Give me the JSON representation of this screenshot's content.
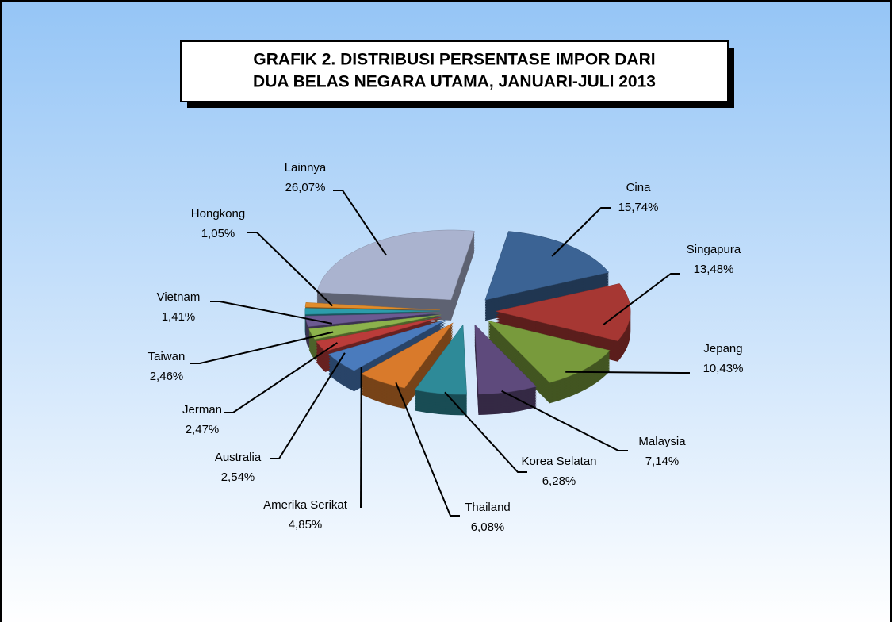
{
  "chart_data": {
    "type": "pie",
    "title": [
      "GRAFIK 2. DISTRIBUSI  PERSENTASE IMPOR DARI",
      "DUA BELAS NEGARA UTAMA, JANUARI-JULI 2013"
    ],
    "categories": [
      "Cina",
      "Singapura",
      "Jepang",
      "Malaysia",
      "Korea Selatan",
      "Thailand",
      "Amerika Serikat",
      "Australia",
      "Jerman",
      "Taiwan",
      "Vietnam",
      "Hongkong",
      "Lainnya"
    ],
    "values": [
      15.74,
      13.48,
      10.43,
      7.14,
      6.28,
      6.08,
      4.85,
      2.54,
      2.47,
      2.46,
      1.41,
      1.05,
      26.07
    ],
    "value_labels": [
      "15,74%",
      "13,48%",
      "10,43%",
      "7,14%",
      "6,28%",
      "6,08%",
      "4,85%",
      "2,54%",
      "2,47%",
      "2,46%",
      "1,41%",
      "1,05%",
      "26,07%"
    ],
    "colors": [
      "#3b6394",
      "#a63733",
      "#789a3c",
      "#5e4a7c",
      "#2e8a98",
      "#d97a2b",
      "#4a7bbd",
      "#bb3c3a",
      "#8cb24c",
      "#6c5a92",
      "#2c9cab",
      "#e08c2c",
      "#aab3cf"
    ]
  }
}
